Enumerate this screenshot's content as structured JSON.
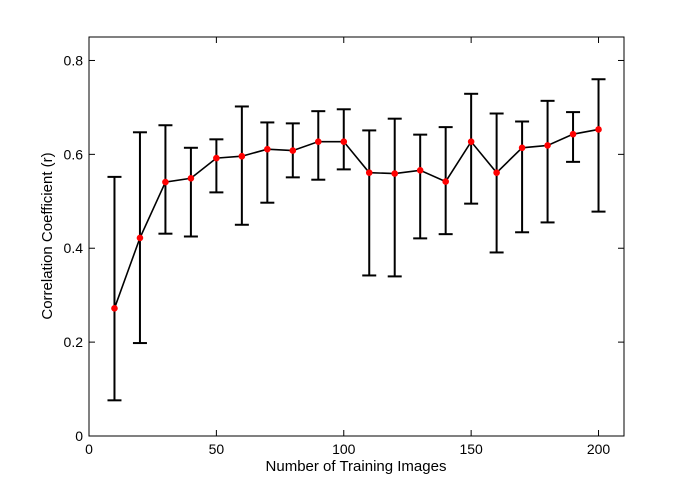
{
  "chart_data": {
    "type": "line",
    "xlabel": "Number of Training Images",
    "ylabel": "Correlation Coefficient (r)",
    "xlim": [
      0,
      210
    ],
    "ylim": [
      0,
      0.85
    ],
    "xticks": [
      0,
      50,
      100,
      150,
      200
    ],
    "yticks": [
      0,
      0.2,
      0.4,
      0.6,
      0.8
    ],
    "xtick_labels": [
      "0",
      "50",
      "100",
      "150",
      "200"
    ],
    "ytick_labels": [
      "0",
      "0.2",
      "0.4",
      "0.6",
      "0.8"
    ],
    "grid": false,
    "legend": "none",
    "line_color": "#000000",
    "marker_color": "#ff0000",
    "errorbar_color": "#000000",
    "series": [
      {
        "x": [
          10,
          20,
          30,
          40,
          50,
          60,
          70,
          80,
          90,
          100,
          110,
          120,
          130,
          140,
          150,
          160,
          170,
          180,
          190,
          200
        ],
        "y": [
          0.272,
          0.422,
          0.541,
          0.549,
          0.592,
          0.596,
          0.611,
          0.608,
          0.627,
          0.627,
          0.561,
          0.559,
          0.566,
          0.542,
          0.627,
          0.561,
          0.614,
          0.619,
          0.643,
          0.653
        ],
        "y_upper": [
          0.552,
          0.647,
          0.662,
          0.614,
          0.632,
          0.702,
          0.668,
          0.666,
          0.692,
          0.696,
          0.651,
          0.676,
          0.642,
          0.658,
          0.729,
          0.687,
          0.67,
          0.714,
          0.69,
          0.76
        ],
        "y_lower": [
          0.076,
          0.198,
          0.431,
          0.425,
          0.519,
          0.45,
          0.497,
          0.551,
          0.546,
          0.568,
          0.342,
          0.34,
          0.421,
          0.43,
          0.495,
          0.391,
          0.434,
          0.455,
          0.584,
          0.478
        ]
      }
    ]
  }
}
